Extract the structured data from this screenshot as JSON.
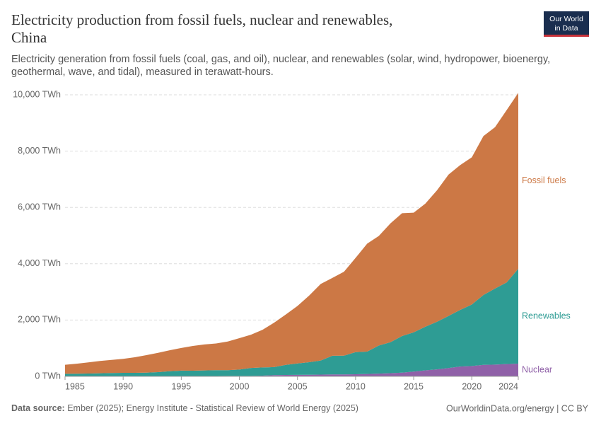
{
  "header": {
    "title": "Electricity production from fossil fuels, nuclear and renewables, China",
    "subtitle": "Electricity generation from fossil fuels (coal, gas, and oil), nuclear, and renewables (solar, wind, hydropower, bioenergy, geothermal, wave, and tidal), measured in terawatt-hours.",
    "logo": [
      "Our World",
      "in Data"
    ]
  },
  "footer": {
    "source_label": "Data source:",
    "source": "Ember (2025); Energy Institute - Statistical Review of World Energy (2025)",
    "credit": "OurWorldinData.org/energy | CC BY"
  },
  "chart_data": {
    "type": "stacked-area",
    "x": [
      1985,
      1986,
      1987,
      1988,
      1989,
      1990,
      1991,
      1992,
      1993,
      1994,
      1995,
      1996,
      1997,
      1998,
      1999,
      2000,
      2001,
      2002,
      2003,
      2004,
      2005,
      2006,
      2007,
      2008,
      2009,
      2010,
      2011,
      2012,
      2013,
      2014,
      2015,
      2016,
      2017,
      2018,
      2019,
      2020,
      2021,
      2022,
      2023,
      2024
    ],
    "xlim": [
      1985,
      2024
    ],
    "xticks": [
      1985,
      1990,
      1995,
      2000,
      2005,
      2010,
      2015,
      2020,
      2024
    ],
    "ylim": [
      0,
      10000
    ],
    "yticks": [
      {
        "value": 0,
        "label": "0 TWh"
      },
      {
        "value": 2000,
        "label": "2,000 TWh"
      },
      {
        "value": 4000,
        "label": "4,000 TWh"
      },
      {
        "value": 6000,
        "label": "6,000 TWh"
      },
      {
        "value": 8000,
        "label": "8,000 TWh"
      },
      {
        "value": 10000,
        "label": "10,000 TWh"
      }
    ],
    "grid": true,
    "series": [
      {
        "name": "Nuclear",
        "color": "#9061a8",
        "values": [
          0,
          0,
          0,
          0,
          0,
          0,
          0,
          0,
          0,
          14,
          13,
          14,
          14,
          14,
          15,
          17,
          17,
          25,
          43,
          50,
          53,
          55,
          62,
          68,
          70,
          74,
          86,
          97,
          112,
          133,
          171,
          213,
          248,
          295,
          348,
          366,
          408,
          418,
          435,
          451
        ]
      },
      {
        "name": "Renewables",
        "color": "#2e9c94",
        "values": [
          92,
          95,
          100,
          109,
          118,
          127,
          125,
          131,
          151,
          168,
          191,
          188,
          196,
          207,
          204,
          225,
          280,
          291,
          287,
          357,
          404,
          446,
          500,
          665,
          664,
          786,
          792,
          1000,
          1100,
          1300,
          1394,
          1550,
          1690,
          1850,
          2010,
          2185,
          2480,
          2700,
          2900,
          3370
        ]
      },
      {
        "name": "Fossil fuels",
        "color": "#cc7845",
        "values": [
          319,
          354,
          397,
          436,
          466,
          494,
          553,
          623,
          685,
          746,
          804,
          878,
          925,
          946,
          1020,
          1114,
          1183,
          1338,
          1581,
          1793,
          2043,
          2365,
          2720,
          2763,
          2980,
          3347,
          3835,
          3891,
          4220,
          4362,
          4250,
          4370,
          4666,
          5021,
          5145,
          5228,
          5646,
          5731,
          6121,
          6249
        ]
      }
    ]
  }
}
